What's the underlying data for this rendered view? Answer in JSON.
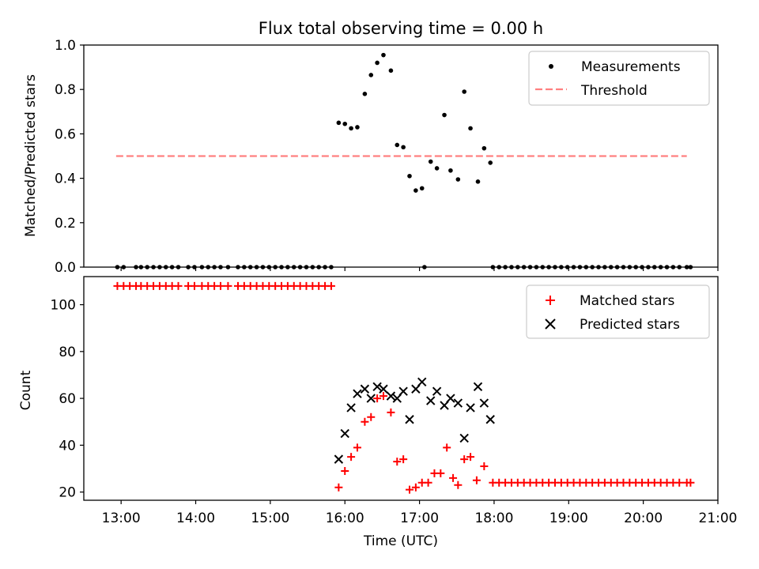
{
  "title": "Flux total observing time = 0.00 h",
  "chart_data": [
    {
      "type": "scatter",
      "ylabel": "Matched/Predicted stars",
      "ylim": [
        0,
        1.0
      ],
      "xlim": [
        "12:30",
        "21:00"
      ],
      "yticks": [
        "0.0",
        "0.2",
        "0.4",
        "0.6",
        "0.8",
        "1.0"
      ],
      "legend_position": "top-right",
      "series": [
        {
          "name": "Measurements",
          "color": "#000000",
          "marker": "dot",
          "points": [
            [
              "12:57",
              0
            ],
            [
              "13:02",
              0
            ],
            [
              "13:12",
              0
            ],
            [
              "13:16",
              0
            ],
            [
              "13:21",
              0
            ],
            [
              "13:26",
              0
            ],
            [
              "13:31",
              0
            ],
            [
              "13:36",
              0
            ],
            [
              "13:41",
              0
            ],
            [
              "13:46",
              0
            ],
            [
              "13:54",
              0
            ],
            [
              "13:59",
              0
            ],
            [
              "14:05",
              0
            ],
            [
              "14:10",
              0
            ],
            [
              "14:15",
              0
            ],
            [
              "14:20",
              0
            ],
            [
              "14:26",
              0
            ],
            [
              "14:34",
              0
            ],
            [
              "14:39",
              0
            ],
            [
              "14:44",
              0
            ],
            [
              "14:49",
              0
            ],
            [
              "14:54",
              0
            ],
            [
              "14:59",
              0
            ],
            [
              "15:04",
              0
            ],
            [
              "15:09",
              0
            ],
            [
              "15:14",
              0
            ],
            [
              "15:19",
              0
            ],
            [
              "15:24",
              0
            ],
            [
              "15:29",
              0
            ],
            [
              "15:34",
              0
            ],
            [
              "15:39",
              0
            ],
            [
              "15:44",
              0
            ],
            [
              "15:49",
              0
            ],
            [
              "15:55",
              0.65
            ],
            [
              "16:00",
              0.645
            ],
            [
              "16:05",
              0.625
            ],
            [
              "16:10",
              0.63
            ],
            [
              "16:16",
              0.78
            ],
            [
              "16:21",
              0.865
            ],
            [
              "16:26",
              0.92
            ],
            [
              "16:31",
              0.955
            ],
            [
              "16:37",
              0.885
            ],
            [
              "16:42",
              0.55
            ],
            [
              "16:47",
              0.54
            ],
            [
              "16:52",
              0.41
            ],
            [
              "16:57",
              0.345
            ],
            [
              "17:02",
              0.355
            ],
            [
              "17:04",
              0
            ],
            [
              "17:09",
              0.475
            ],
            [
              "17:14",
              0.445
            ],
            [
              "17:20",
              0.685
            ],
            [
              "17:25",
              0.435
            ],
            [
              "17:31",
              0.395
            ],
            [
              "17:36",
              0.79
            ],
            [
              "17:41",
              0.625
            ],
            [
              "17:47",
              0.385
            ],
            [
              "17:52",
              0.535
            ],
            [
              "17:57",
              0.47
            ],
            [
              "17:59",
              0
            ],
            [
              "18:04",
              0
            ],
            [
              "18:09",
              0
            ],
            [
              "18:14",
              0
            ],
            [
              "18:19",
              0
            ],
            [
              "18:24",
              0
            ],
            [
              "18:29",
              0
            ],
            [
              "18:34",
              0
            ],
            [
              "18:39",
              0
            ],
            [
              "18:44",
              0
            ],
            [
              "18:49",
              0
            ],
            [
              "18:54",
              0
            ],
            [
              "18:59",
              0
            ],
            [
              "19:04",
              0
            ],
            [
              "19:09",
              0
            ],
            [
              "19:14",
              0
            ],
            [
              "19:19",
              0
            ],
            [
              "19:24",
              0
            ],
            [
              "19:29",
              0
            ],
            [
              "19:34",
              0
            ],
            [
              "19:39",
              0
            ],
            [
              "19:44",
              0
            ],
            [
              "19:49",
              0
            ],
            [
              "19:54",
              0
            ],
            [
              "19:59",
              0
            ],
            [
              "20:04",
              0
            ],
            [
              "20:09",
              0
            ],
            [
              "20:14",
              0
            ],
            [
              "20:19",
              0
            ],
            [
              "20:24",
              0
            ],
            [
              "20:29",
              0
            ],
            [
              "20:35",
              0
            ],
            [
              "20:38",
              0
            ]
          ]
        },
        {
          "name": "Threshold",
          "color": "#ff8080",
          "line": "dashed",
          "points": [
            [
              "12:56",
              0.5
            ],
            [
              "20:35",
              0.5
            ]
          ]
        }
      ]
    },
    {
      "type": "scatter",
      "xlabel": "Time (UTC)",
      "ylabel": "Count",
      "ylim": [
        16.5,
        112
      ],
      "xlim": [
        "12:30",
        "21:00"
      ],
      "xticks": [
        "13:00",
        "14:00",
        "15:00",
        "16:00",
        "17:00",
        "18:00",
        "19:00",
        "20:00",
        "21:00"
      ],
      "yticks": [
        "20",
        "40",
        "60",
        "80",
        "100"
      ],
      "legend_position": "top-right",
      "series": [
        {
          "name": "Matched stars",
          "color": "#ff0000",
          "marker": "plus",
          "points": [
            [
              "12:57",
              108
            ],
            [
              "13:02",
              108
            ],
            [
              "13:07",
              108
            ],
            [
              "13:12",
              108
            ],
            [
              "13:16",
              108
            ],
            [
              "13:21",
              108
            ],
            [
              "13:26",
              108
            ],
            [
              "13:31",
              108
            ],
            [
              "13:36",
              108
            ],
            [
              "13:41",
              108
            ],
            [
              "13:46",
              108
            ],
            [
              "13:54",
              108
            ],
            [
              "13:59",
              108
            ],
            [
              "14:05",
              108
            ],
            [
              "14:10",
              108
            ],
            [
              "14:15",
              108
            ],
            [
              "14:20",
              108
            ],
            [
              "14:26",
              108
            ],
            [
              "14:34",
              108
            ],
            [
              "14:39",
              108
            ],
            [
              "14:44",
              108
            ],
            [
              "14:49",
              108
            ],
            [
              "14:54",
              108
            ],
            [
              "14:59",
              108
            ],
            [
              "15:04",
              108
            ],
            [
              "15:09",
              108
            ],
            [
              "15:14",
              108
            ],
            [
              "15:19",
              108
            ],
            [
              "15:24",
              108
            ],
            [
              "15:29",
              108
            ],
            [
              "15:34",
              108
            ],
            [
              "15:39",
              108
            ],
            [
              "15:44",
              108
            ],
            [
              "15:49",
              108
            ],
            [
              "15:55",
              22
            ],
            [
              "16:00",
              29
            ],
            [
              "16:05",
              35
            ],
            [
              "16:10",
              39
            ],
            [
              "16:16",
              50
            ],
            [
              "16:21",
              52
            ],
            [
              "16:26",
              60
            ],
            [
              "16:31",
              61
            ],
            [
              "16:37",
              54
            ],
            [
              "16:42",
              33
            ],
            [
              "16:47",
              34
            ],
            [
              "16:52",
              21
            ],
            [
              "16:57",
              22
            ],
            [
              "17:02",
              24
            ],
            [
              "17:07",
              24
            ],
            [
              "17:12",
              28
            ],
            [
              "17:17",
              28
            ],
            [
              "17:22",
              39
            ],
            [
              "17:27",
              26
            ],
            [
              "17:31",
              23
            ],
            [
              "17:36",
              34
            ],
            [
              "17:41",
              35
            ],
            [
              "17:46",
              25
            ],
            [
              "17:52",
              31
            ],
            [
              "17:59",
              24
            ],
            [
              "18:04",
              24
            ],
            [
              "18:09",
              24
            ],
            [
              "18:14",
              24
            ],
            [
              "18:19",
              24
            ],
            [
              "18:24",
              24
            ],
            [
              "18:29",
              24
            ],
            [
              "18:34",
              24
            ],
            [
              "18:39",
              24
            ],
            [
              "18:44",
              24
            ],
            [
              "18:49",
              24
            ],
            [
              "18:54",
              24
            ],
            [
              "18:59",
              24
            ],
            [
              "19:04",
              24
            ],
            [
              "19:09",
              24
            ],
            [
              "19:14",
              24
            ],
            [
              "19:19",
              24
            ],
            [
              "19:24",
              24
            ],
            [
              "19:29",
              24
            ],
            [
              "19:34",
              24
            ],
            [
              "19:39",
              24
            ],
            [
              "19:44",
              24
            ],
            [
              "19:49",
              24
            ],
            [
              "19:54",
              24
            ],
            [
              "19:59",
              24
            ],
            [
              "20:04",
              24
            ],
            [
              "20:09",
              24
            ],
            [
              "20:14",
              24
            ],
            [
              "20:19",
              24
            ],
            [
              "20:24",
              24
            ],
            [
              "20:29",
              24
            ],
            [
              "20:35",
              24
            ],
            [
              "20:38",
              24
            ]
          ]
        },
        {
          "name": "Predicted stars",
          "color": "#000000",
          "marker": "x",
          "points": [
            [
              "15:55",
              34
            ],
            [
              "16:00",
              45
            ],
            [
              "16:05",
              56
            ],
            [
              "16:10",
              62
            ],
            [
              "16:16",
              64
            ],
            [
              "16:21",
              60
            ],
            [
              "16:26",
              65
            ],
            [
              "16:31",
              64
            ],
            [
              "16:37",
              61
            ],
            [
              "16:42",
              60
            ],
            [
              "16:47",
              63
            ],
            [
              "16:52",
              51
            ],
            [
              "16:57",
              64
            ],
            [
              "17:02",
              67
            ],
            [
              "17:09",
              59
            ],
            [
              "17:14",
              63
            ],
            [
              "17:20",
              57
            ],
            [
              "17:25",
              60
            ],
            [
              "17:31",
              58
            ],
            [
              "17:36",
              43
            ],
            [
              "17:41",
              56
            ],
            [
              "17:47",
              65
            ],
            [
              "17:52",
              58
            ],
            [
              "17:57",
              51
            ]
          ]
        }
      ]
    }
  ]
}
